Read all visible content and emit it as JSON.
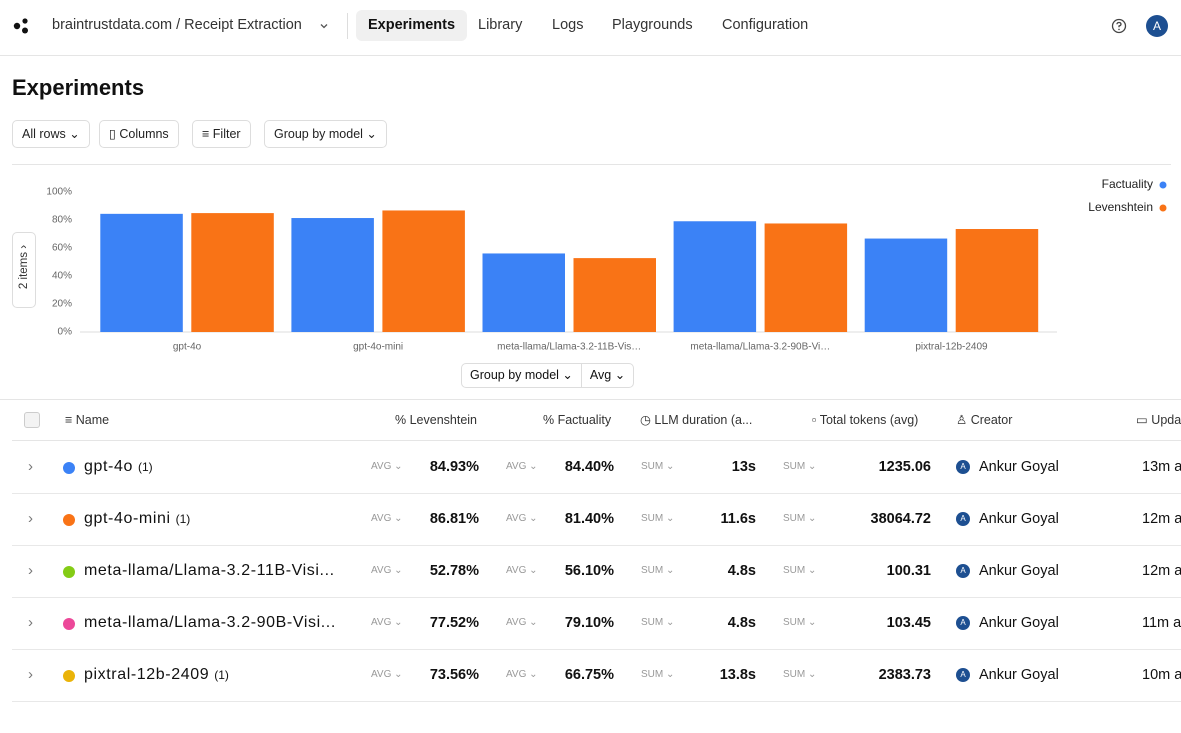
{
  "nav": {
    "org_project": "braintrustdata.com / Receipt Extraction",
    "tabs": [
      "Experiments",
      "Library",
      "Logs",
      "Playgrounds",
      "Configuration"
    ],
    "avatar": "A"
  },
  "page": {
    "title": "Experiments",
    "toolbar": [
      "All rows",
      "Columns",
      "Filter",
      "Group by model"
    ],
    "side_toggle": "2 items",
    "chart_controls": [
      "Group by model",
      "Avg"
    ]
  },
  "chart_data": {
    "type": "bar",
    "categories": [
      "gpt-4o",
      "gpt-4o-mini",
      "meta-llama/Llama-3.2-11B-Vis…",
      "meta-llama/Llama-3.2-90B-Vi…",
      "pixtral-12b-2409"
    ],
    "series": [
      {
        "name": "Factuality",
        "color": "#3b82f6",
        "values": [
          84.4,
          81.4,
          56.1,
          79.1,
          66.75
        ]
      },
      {
        "name": "Levenshtein",
        "color": "#f97316",
        "values": [
          84.93,
          86.81,
          52.78,
          77.52,
          73.56
        ]
      }
    ],
    "ylim": [
      0,
      100
    ],
    "yticks": [
      {
        "value": 0,
        "label": "0%"
      },
      {
        "value": 20,
        "label": "20%"
      },
      {
        "value": 40,
        "label": "40%"
      },
      {
        "value": 60,
        "label": "60%"
      },
      {
        "value": 80,
        "label": "80%"
      },
      {
        "value": 100,
        "label": "100%"
      }
    ],
    "grid": false,
    "legend": "top-right"
  },
  "table": {
    "columns": [
      "Name",
      "Levenshtein",
      "Factuality",
      "LLM duration (a...",
      "Total tokens (avg)",
      "Creator",
      "Upda"
    ],
    "rows": [
      {
        "color": "#3b82f6",
        "name": "gpt-4o",
        "count": "(1)",
        "lev_agg": "AVG",
        "levenshtein": "84.93%",
        "fact_agg": "AVG",
        "factuality": "84.40%",
        "dur_agg": "SUM",
        "duration": "13s",
        "tok_agg": "SUM",
        "tokens": "1235.06",
        "creator_initial": "A",
        "creator": "Ankur Goyal",
        "updated": "13m a"
      },
      {
        "color": "#f97316",
        "name": "gpt-4o-mini",
        "count": "(1)",
        "lev_agg": "AVG",
        "levenshtein": "86.81%",
        "fact_agg": "AVG",
        "factuality": "81.40%",
        "dur_agg": "SUM",
        "duration": "11.6s",
        "tok_agg": "SUM",
        "tokens": "38064.72",
        "creator_initial": "A",
        "creator": "Ankur Goyal",
        "updated": "12m a"
      },
      {
        "color": "#84cc16",
        "name": "meta-llama/Llama-3.2-11B-Visi...",
        "lev_agg": "AVG",
        "levenshtein": "52.78%",
        "fact_agg": "AVG",
        "factuality": "56.10%",
        "dur_agg": "SUM",
        "duration": "4.8s",
        "tok_agg": "SUM",
        "tokens": "100.31",
        "creator_initial": "A",
        "creator": "Ankur Goyal",
        "updated": "12m a"
      },
      {
        "color": "#ec4899",
        "name": "meta-llama/Llama-3.2-90B-Visi...",
        "lev_agg": "AVG",
        "levenshtein": "77.52%",
        "fact_agg": "AVG",
        "factuality": "79.10%",
        "dur_agg": "SUM",
        "duration": "4.8s",
        "tok_agg": "SUM",
        "tokens": "103.45",
        "creator_initial": "A",
        "creator": "Ankur Goyal",
        "updated": "11m a"
      },
      {
        "color": "#eab308",
        "name": "pixtral-12b-2409",
        "count": "(1)",
        "lev_agg": "AVG",
        "levenshtein": "73.56%",
        "fact_agg": "AVG",
        "factuality": "66.75%",
        "dur_agg": "SUM",
        "duration": "13.8s",
        "tok_agg": "SUM",
        "tokens": "2383.73",
        "creator_initial": "A",
        "creator": "Ankur Goyal",
        "updated": "10m a"
      }
    ]
  }
}
